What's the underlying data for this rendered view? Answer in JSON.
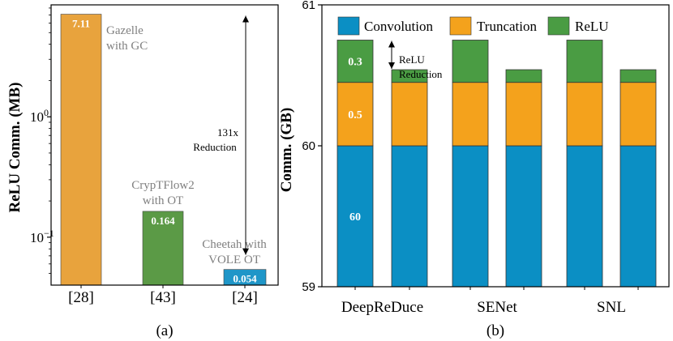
{
  "chart_data": [
    {
      "type": "bar",
      "title": "",
      "caption": "(a)",
      "ylabel": "ReLU Comm. (MB)",
      "yscale": "log",
      "ylim": [
        0.04,
        8.5
      ],
      "yticks": [
        {
          "value": 1,
          "label": "10^0",
          "base": "10",
          "exp": "0"
        },
        {
          "value": 0.1,
          "label": "10^-1",
          "base": "10",
          "exp": "−1"
        }
      ],
      "categories": [
        "[28]",
        "[43]",
        "[24]"
      ],
      "values": [
        7.11,
        0.164,
        0.054
      ],
      "value_labels": [
        "7.11",
        "0.164",
        "0.054"
      ],
      "bar_names": [
        [
          "Gazelle",
          "with GC"
        ],
        [
          "CrypTFlow2",
          "with OT"
        ],
        [
          "Cheetah with",
          "VOLE OT"
        ]
      ],
      "colors": [
        "#e8a33d",
        "#5b9a46",
        "#1f96c8"
      ],
      "annotation": {
        "lines": [
          "131x",
          "Reduction"
        ],
        "from": 7.11,
        "to": 0.054
      }
    },
    {
      "type": "bar",
      "stacked": true,
      "title": "",
      "caption": "(b)",
      "ylabel": "Comm. (GB)",
      "ylim": [
        59,
        61
      ],
      "yticks": [
        59,
        60,
        61
      ],
      "group_labels": [
        "DeepReDuce",
        "SENet",
        "SNL"
      ],
      "legend": [
        "Convolution",
        "Truncation",
        "ReLU"
      ],
      "colors": {
        "Convolution": "#0b8fc4",
        "Truncation": "#f4a21c",
        "ReLU": "#4a9c43"
      },
      "bars": [
        {
          "group": "DeepReDuce",
          "convolution": 60,
          "truncation": 0.45,
          "relu": 0.3
        },
        {
          "group": "DeepReDuce",
          "convolution": 60,
          "truncation": 0.45,
          "relu": 0.09
        },
        {
          "group": "SENet",
          "convolution": 60,
          "truncation": 0.45,
          "relu": 0.3
        },
        {
          "group": "SENet",
          "convolution": 60,
          "truncation": 0.45,
          "relu": 0.09
        },
        {
          "group": "SNL",
          "convolution": 60,
          "truncation": 0.45,
          "relu": 0.3
        },
        {
          "group": "SNL",
          "convolution": 60,
          "truncation": 0.45,
          "relu": 0.09
        }
      ],
      "segment_labels": {
        "relu": "0.3",
        "truncation": "0.5",
        "convolution": "60"
      },
      "annotation": {
        "lines": [
          "ReLU",
          "Reduction"
        ]
      }
    }
  ]
}
